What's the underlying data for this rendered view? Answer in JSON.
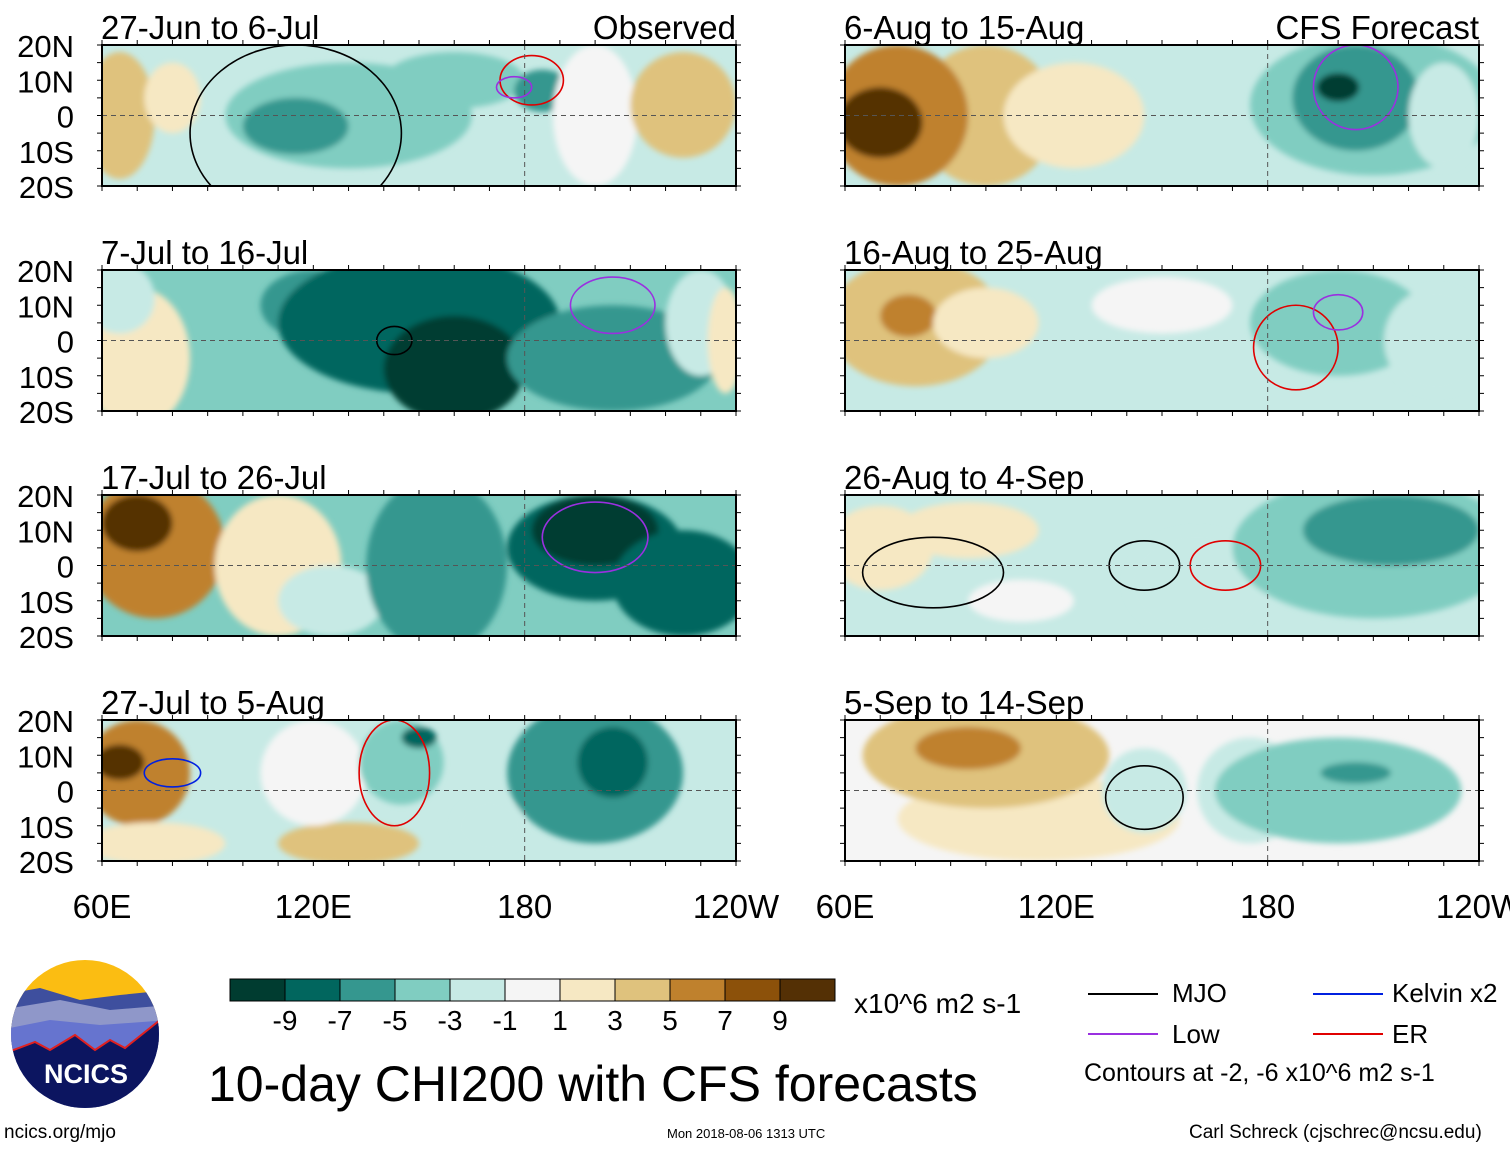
{
  "chart_data": {
    "type": "heatmap",
    "title": "10-day CHI200 with CFS forecasts",
    "variable": "CHI200",
    "units": "x10^6 m2 s-1",
    "lon_range": [
      60,
      240
    ],
    "lat_range": [
      -20,
      20
    ],
    "x_ticks": [
      "60E",
      "120E",
      "180",
      "120W"
    ],
    "y_ticks": [
      "20N",
      "10N",
      "0",
      "10S",
      "20S"
    ],
    "colorbar": {
      "levels": [
        "-9",
        "-7",
        "-5",
        "-3",
        "-1",
        "1",
        "3",
        "5",
        "7",
        "9"
      ],
      "colors": [
        "#003c30",
        "#01665e",
        "#35978f",
        "#80cdc1",
        "#c7eae5",
        "#f5f5f5",
        "#f6e8c3",
        "#dfc27d",
        "#bf812d",
        "#8c510a",
        "#543005"
      ]
    },
    "column_labels": [
      "Observed",
      "CFS Forecast"
    ],
    "legend": [
      {
        "name": "MJO",
        "color": "#000000"
      },
      {
        "name": "Kelvin x2",
        "color": "#0020e0"
      },
      {
        "name": "Low",
        "color": "#9a30e0"
      },
      {
        "name": "ER",
        "color": "#e00000"
      }
    ],
    "contour_note": "Contours at -2, -6 x10^6 m2 s-1",
    "panels": [
      {
        "title": "27-Jun to 6-Jul",
        "column": "Observed",
        "bg": -2,
        "blobs": [
          [
            65,
            0,
            10,
            18,
            4
          ],
          [
            80,
            5,
            8,
            10,
            2
          ],
          [
            130,
            0,
            35,
            15,
            -4
          ],
          [
            115,
            -3,
            15,
            8,
            -6
          ],
          [
            160,
            10,
            20,
            8,
            -4
          ],
          [
            185,
            7,
            8,
            6,
            -6
          ],
          [
            200,
            0,
            12,
            20,
            0
          ],
          [
            225,
            3,
            15,
            15,
            4
          ]
        ],
        "contours": [
          [
            "MJO",
            115,
            -5,
            30,
            25
          ],
          [
            "ER",
            182,
            10,
            9,
            7
          ],
          [
            "Low",
            177,
            8,
            5,
            3
          ]
        ]
      },
      {
        "title": "7-Jul to 16-Jul",
        "column": "Observed",
        "bg": -4,
        "blobs": [
          [
            70,
            -5,
            15,
            20,
            2
          ],
          [
            65,
            12,
            10,
            10,
            -2
          ],
          [
            120,
            10,
            15,
            10,
            -6
          ],
          [
            150,
            5,
            40,
            20,
            -8
          ],
          [
            160,
            -8,
            20,
            15,
            -10
          ],
          [
            205,
            -5,
            30,
            15,
            -6
          ],
          [
            230,
            5,
            10,
            15,
            -2
          ],
          [
            237,
            0,
            5,
            15,
            2
          ]
        ],
        "contours": [
          [
            "MJO",
            143,
            0,
            5,
            4
          ],
          [
            "Low",
            205,
            10,
            12,
            8
          ]
        ]
      },
      {
        "title": "17-Jul to 26-Jul",
        "column": "Observed",
        "bg": -4,
        "blobs": [
          [
            75,
            5,
            20,
            20,
            6
          ],
          [
            70,
            12,
            10,
            8,
            10
          ],
          [
            110,
            0,
            18,
            20,
            3
          ],
          [
            125,
            -10,
            15,
            10,
            -2
          ],
          [
            155,
            0,
            20,
            25,
            -6
          ],
          [
            200,
            5,
            25,
            15,
            -8
          ],
          [
            200,
            10,
            18,
            10,
            -10
          ],
          [
            225,
            -5,
            20,
            15,
            -8
          ]
        ],
        "contours": [
          [
            "Low",
            200,
            8,
            15,
            10
          ]
        ]
      },
      {
        "title": "27-Jul to 5-Aug",
        "column": "Observed",
        "bg": -1,
        "blobs": [
          [
            70,
            5,
            15,
            15,
            6
          ],
          [
            65,
            8,
            7,
            5,
            10
          ],
          [
            75,
            -15,
            20,
            6,
            2
          ],
          [
            130,
            -15,
            20,
            6,
            4
          ],
          [
            120,
            5,
            15,
            15,
            0
          ],
          [
            145,
            8,
            12,
            12,
            -4
          ],
          [
            150,
            15,
            5,
            3,
            -8
          ],
          [
            200,
            5,
            25,
            20,
            -6
          ],
          [
            205,
            8,
            10,
            10,
            -8
          ],
          [
            170,
            -10,
            10,
            8,
            -2
          ]
        ],
        "contours": [
          [
            "Kelvin x2",
            80,
            5,
            8,
            4
          ],
          [
            "ER",
            143,
            5,
            10,
            15
          ]
        ]
      },
      {
        "title": "6-Aug to 15-Aug",
        "column": "CFS Forecast",
        "bg": -2,
        "blobs": [
          [
            100,
            0,
            20,
            20,
            4
          ],
          [
            125,
            0,
            20,
            15,
            2
          ],
          [
            75,
            0,
            20,
            20,
            6
          ],
          [
            70,
            -2,
            12,
            10,
            10
          ],
          [
            210,
            3,
            35,
            20,
            -4
          ],
          [
            205,
            5,
            18,
            15,
            -6
          ],
          [
            200,
            8,
            6,
            4,
            -10
          ],
          [
            230,
            0,
            10,
            15,
            -2
          ]
        ],
        "contours": [
          [
            "Low",
            205,
            8,
            12,
            12
          ]
        ]
      },
      {
        "title": "16-Aug to 25-Aug",
        "column": "CFS Forecast",
        "bg": -1,
        "blobs": [
          [
            150,
            10,
            20,
            8,
            1
          ],
          [
            80,
            5,
            25,
            18,
            4
          ],
          [
            78,
            7,
            8,
            6,
            7
          ],
          [
            100,
            5,
            15,
            10,
            2
          ],
          [
            200,
            5,
            25,
            15,
            -3
          ],
          [
            228,
            0,
            15,
            15,
            -1
          ]
        ],
        "contours": [
          [
            "ER",
            188,
            -2,
            12,
            12
          ],
          [
            "Low",
            200,
            8,
            7,
            5
          ]
        ]
      },
      {
        "title": "26-Aug to 4-Sep",
        "column": "CFS Forecast",
        "bg": -2,
        "blobs": [
          [
            70,
            5,
            15,
            12,
            2
          ],
          [
            95,
            10,
            20,
            8,
            2
          ],
          [
            110,
            -10,
            15,
            6,
            1
          ],
          [
            160,
            -5,
            20,
            15,
            -1
          ],
          [
            210,
            5,
            40,
            20,
            -4
          ],
          [
            215,
            10,
            25,
            10,
            -6
          ]
        ],
        "contours": [
          [
            "MJO",
            85,
            -2,
            20,
            10
          ],
          [
            "MJO",
            145,
            0,
            10,
            7
          ],
          [
            "ER",
            168,
            0,
            10,
            7
          ]
        ]
      },
      {
        "title": "5-Sep to 14-Sep",
        "column": "CFS Forecast",
        "bg": 0,
        "blobs": [
          [
            115,
            -8,
            40,
            12,
            2
          ],
          [
            100,
            10,
            35,
            15,
            4
          ],
          [
            95,
            12,
            15,
            6,
            7
          ],
          [
            175,
            0,
            15,
            15,
            -1
          ],
          [
            145,
            0,
            12,
            12,
            -2
          ],
          [
            200,
            0,
            35,
            15,
            -3
          ],
          [
            205,
            5,
            10,
            3,
            -6
          ]
        ],
        "contours": [
          [
            "MJO",
            145,
            -2,
            11,
            9
          ]
        ]
      }
    ]
  },
  "footer": {
    "site": "ncics.org/mjo",
    "timestamp": "Mon 2018-08-06 1313 UTC",
    "author": "Carl Schreck (cjschrec@ncsu.edu)",
    "logo_text": "NCICS"
  }
}
